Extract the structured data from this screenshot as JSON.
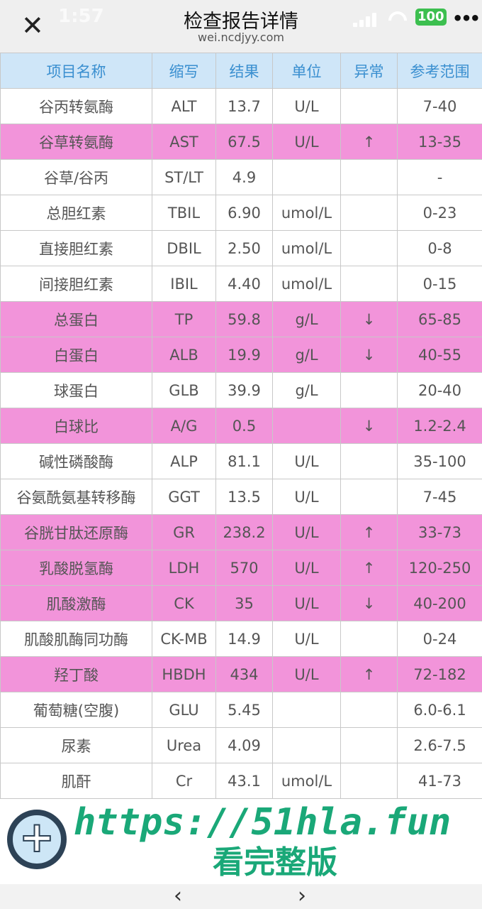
{
  "status": {
    "time": "1:57",
    "battery": "100"
  },
  "header": {
    "title": "检查报告详情",
    "subtitle": "wei.ncdjyy.com",
    "close_icon": "close-icon",
    "more_icon": "more-icon"
  },
  "table": {
    "columns": [
      "项目名称",
      "缩写",
      "结果",
      "单位",
      "异常",
      "参考范围"
    ],
    "highlight_color": "#f294da",
    "header_color": "#cfe6f8",
    "rows": [
      [
        "谷丙转氨酶",
        "ALT",
        "13.7",
        "U/L",
        "",
        "7-40"
      ],
      [
        "谷草转氨酶",
        "AST",
        "67.5",
        "U/L",
        "↑",
        "13-35"
      ],
      [
        "谷草/谷丙",
        "ST/LT",
        "4.9",
        "",
        "",
        "-"
      ],
      [
        "总胆红素",
        "TBIL",
        "6.90",
        "umol/L",
        "",
        "0-23"
      ],
      [
        "直接胆红素",
        "DBIL",
        "2.50",
        "umol/L",
        "",
        "0-8"
      ],
      [
        "间接胆红素",
        "IBIL",
        "4.40",
        "umol/L",
        "",
        "0-15"
      ],
      [
        "总蛋白",
        "TP",
        "59.8",
        "g/L",
        "↓",
        "65-85"
      ],
      [
        "白蛋白",
        "ALB",
        "19.9",
        "g/L",
        "↓",
        "40-55"
      ],
      [
        "球蛋白",
        "GLB",
        "39.9",
        "g/L",
        "",
        "20-40"
      ],
      [
        "白球比",
        "A/G",
        "0.5",
        "",
        "↓",
        "1.2-2.4"
      ],
      [
        "碱性磷酸酶",
        "ALP",
        "81.1",
        "U/L",
        "",
        "35-100"
      ],
      [
        "谷氨酰氨基转移酶",
        "GGT",
        "13.5",
        "U/L",
        "",
        "7-45"
      ],
      [
        "谷胱甘肽还原酶",
        "GR",
        "238.2",
        "U/L",
        "↑",
        "33-73"
      ],
      [
        "乳酸脱氢酶",
        "LDH",
        "570",
        "U/L",
        "↑",
        "120-250"
      ],
      [
        "肌酸激酶",
        "CK",
        "35",
        "U/L",
        "↓",
        "40-200"
      ],
      [
        "肌酸肌酶同功酶",
        "CK-MB",
        "14.9",
        "U/L",
        "",
        "0-24"
      ],
      [
        "羟丁酸",
        "HBDH",
        "434",
        "U/L",
        "↑",
        "72-182"
      ],
      [
        "葡萄糖(空腹)",
        "GLU",
        "5.45",
        "",
        "",
        "6.0-6.1"
      ],
      [
        "尿素",
        "Urea",
        "4.09",
        "",
        "",
        "2.6-7.5"
      ],
      [
        "肌酐",
        "Cr",
        "43.1",
        "umol/L",
        "",
        "41-73"
      ]
    ]
  },
  "watermark": {
    "url": "https://51hla.fun",
    "text": "看完整版"
  },
  "nav": {
    "back": "‹",
    "forward": "›"
  }
}
